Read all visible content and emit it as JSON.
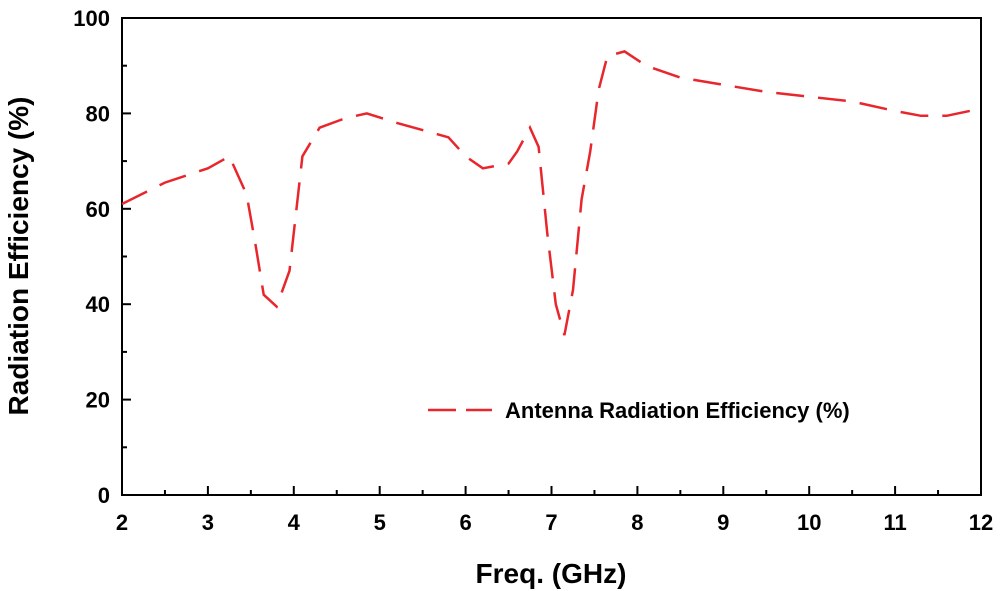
{
  "chart_data": {
    "type": "line",
    "title": "",
    "xlabel": "Freq. (GHz)",
    "ylabel": "Radiation Efficiency (%)",
    "xlim": [
      2,
      12
    ],
    "ylim": [
      0,
      100
    ],
    "x_ticks": [
      2,
      3,
      4,
      5,
      6,
      7,
      8,
      9,
      10,
      11,
      12
    ],
    "y_ticks": [
      0,
      20,
      40,
      60,
      80,
      100
    ],
    "x_tick_labels": [
      "2",
      "3",
      "4",
      "5",
      "6",
      "7",
      "8",
      "9",
      "10",
      "11",
      "12"
    ],
    "y_tick_labels": [
      "0",
      "20",
      "40",
      "60",
      "80",
      "100"
    ],
    "grid": false,
    "legend_position": "bottom-right",
    "series": [
      {
        "name": "Antenna Radiation Efficiency (%)",
        "color": "#e8262b",
        "line_style": "dashed",
        "x": [
          2.0,
          2.5,
          3.0,
          3.25,
          3.45,
          3.55,
          3.65,
          3.8,
          3.95,
          4.1,
          4.3,
          4.6,
          4.85,
          5.2,
          5.5,
          5.8,
          6.0,
          6.2,
          6.5,
          6.6,
          6.75,
          6.85,
          6.95,
          7.05,
          7.15,
          7.25,
          7.35,
          7.45,
          7.55,
          7.65,
          7.85,
          8.1,
          8.5,
          9.0,
          9.5,
          10.0,
          10.5,
          11.0,
          11.3,
          11.6,
          12.0
        ],
        "y": [
          61,
          65.5,
          68.5,
          71,
          63,
          53,
          42,
          39.5,
          47,
          71,
          77,
          79,
          80,
          78,
          76.5,
          75,
          71,
          68.5,
          69.5,
          72,
          77,
          73,
          55,
          40,
          33.5,
          43,
          62,
          72,
          85,
          92,
          93,
          90,
          87.5,
          86,
          84.5,
          83.5,
          82.5,
          80.5,
          79.5,
          79.5,
          81
        ]
      }
    ]
  }
}
